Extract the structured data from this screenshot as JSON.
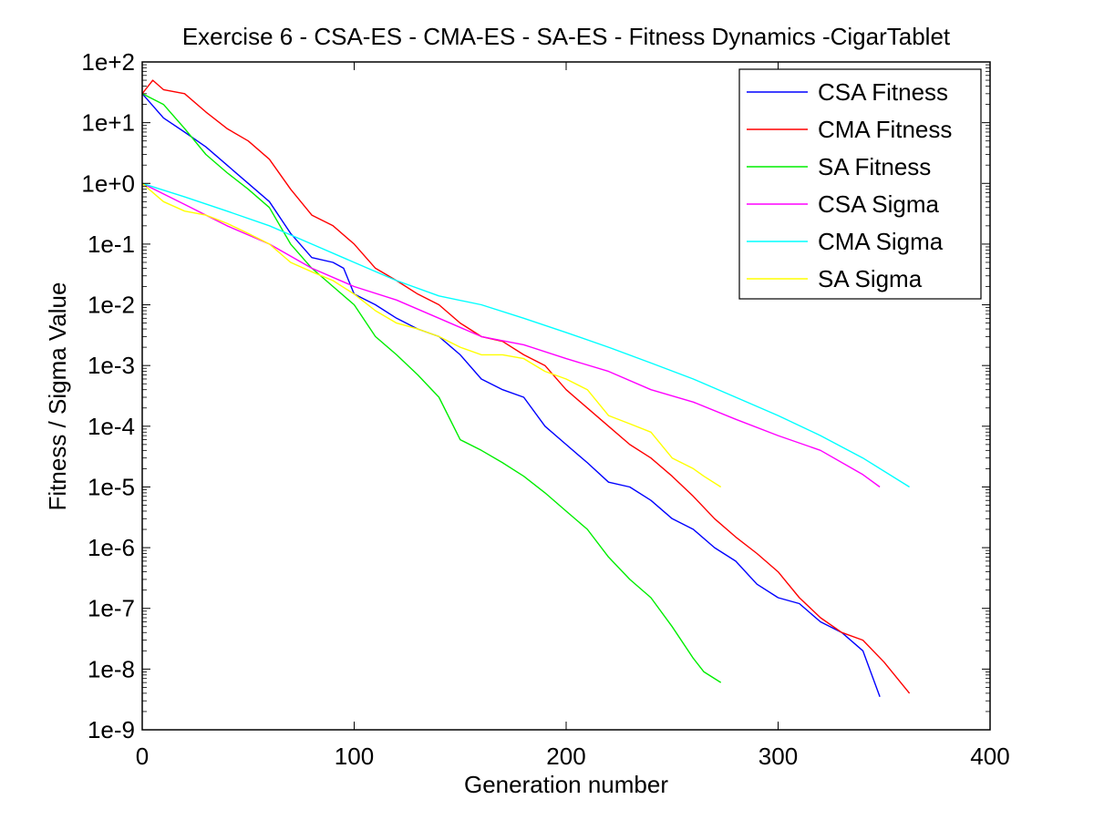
{
  "chart_data": {
    "type": "line",
    "title": "Exercise 6 - CSA-ES - CMA-ES - SA-ES - Fitness Dynamics -CigarTablet",
    "xlabel": "Generation number",
    "ylabel": "Fitness / Sigma Value",
    "xlim": [
      0,
      400
    ],
    "ylim": [
      1e-09,
      100
    ],
    "yscale": "log",
    "x_ticks": [
      0,
      100,
      200,
      300,
      400
    ],
    "x_tick_labels": [
      "0",
      "100",
      "200",
      "300",
      "400"
    ],
    "y_ticks": [
      1e-09,
      1e-08,
      1e-07,
      1e-06,
      1e-05,
      0.0001,
      0.001,
      0.01,
      0.1,
      1,
      10,
      100
    ],
    "y_tick_labels": [
      "1e-9",
      "1e-8",
      "1e-7",
      "1e-6",
      "1e-5",
      "1e-4",
      "1e-3",
      "1e-2",
      "1e-1",
      "1e+0",
      "1e+1",
      "1e+2"
    ],
    "grid": false,
    "legend_position": "top-right",
    "series": [
      {
        "name": "CSA Fitness",
        "color": "#0000ff",
        "x": [
          0,
          10,
          20,
          30,
          40,
          50,
          60,
          70,
          80,
          90,
          95,
          100,
          110,
          120,
          130,
          140,
          150,
          160,
          170,
          180,
          190,
          200,
          210,
          220,
          230,
          240,
          250,
          260,
          270,
          280,
          290,
          300,
          310,
          320,
          330,
          340,
          348
        ],
        "y": [
          30,
          12,
          7,
          4,
          2,
          1,
          0.5,
          0.15,
          0.06,
          0.05,
          0.04,
          0.015,
          0.01,
          0.006,
          0.004,
          0.003,
          0.0015,
          0.0006,
          0.0004,
          0.0003,
          0.0001,
          5e-05,
          2.5e-05,
          1.2e-05,
          1e-05,
          6e-06,
          3e-06,
          2e-06,
          1e-06,
          6e-07,
          2.5e-07,
          1.5e-07,
          1.2e-07,
          6e-08,
          4e-08,
          2e-08,
          3.5e-09
        ]
      },
      {
        "name": "CMA Fitness",
        "color": "#ff0000",
        "x": [
          0,
          5,
          10,
          20,
          30,
          40,
          50,
          60,
          70,
          80,
          90,
          100,
          110,
          120,
          130,
          140,
          150,
          160,
          170,
          180,
          190,
          200,
          210,
          220,
          230,
          240,
          250,
          260,
          270,
          280,
          290,
          300,
          310,
          320,
          330,
          340,
          350,
          362
        ],
        "y": [
          30,
          50,
          35,
          30,
          15,
          8,
          5,
          2.5,
          0.8,
          0.3,
          0.2,
          0.1,
          0.04,
          0.025,
          0.015,
          0.01,
          0.005,
          0.003,
          0.0025,
          0.0015,
          0.001,
          0.0004,
          0.0002,
          0.0001,
          5e-05,
          3e-05,
          1.5e-05,
          7e-06,
          3e-06,
          1.5e-06,
          8e-07,
          4e-07,
          1.5e-07,
          7e-08,
          4e-08,
          3e-08,
          1.3e-08,
          4e-09
        ]
      },
      {
        "name": "SA Fitness",
        "color": "#00ee00",
        "x": [
          0,
          10,
          20,
          30,
          40,
          50,
          60,
          70,
          80,
          90,
          100,
          110,
          120,
          130,
          140,
          150,
          160,
          170,
          180,
          190,
          200,
          210,
          220,
          230,
          240,
          250,
          260,
          265,
          273
        ],
        "y": [
          30,
          20,
          8,
          3,
          1.5,
          0.8,
          0.4,
          0.1,
          0.04,
          0.02,
          0.01,
          0.003,
          0.0015,
          0.0007,
          0.0003,
          6e-05,
          4e-05,
          2.5e-05,
          1.5e-05,
          8e-06,
          4e-06,
          2e-06,
          7e-07,
          3e-07,
          1.5e-07,
          5e-08,
          1.5e-08,
          9e-09,
          6e-09
        ]
      },
      {
        "name": "CSA Sigma",
        "color": "#ff00ff",
        "x": [
          0,
          20,
          40,
          60,
          80,
          100,
          120,
          140,
          160,
          180,
          200,
          220,
          240,
          260,
          280,
          300,
          320,
          340,
          348
        ],
        "y": [
          1,
          0.45,
          0.2,
          0.1,
          0.04,
          0.02,
          0.012,
          0.006,
          0.003,
          0.0022,
          0.0013,
          0.0008,
          0.0004,
          0.00025,
          0.00013,
          7e-05,
          4e-05,
          1.6e-05,
          1e-05
        ]
      },
      {
        "name": "CMA Sigma",
        "color": "#00ffff",
        "x": [
          0,
          20,
          40,
          60,
          80,
          100,
          120,
          140,
          160,
          180,
          200,
          220,
          240,
          260,
          280,
          300,
          320,
          340,
          362
        ],
        "y": [
          1,
          0.6,
          0.35,
          0.2,
          0.1,
          0.05,
          0.025,
          0.014,
          0.01,
          0.006,
          0.0035,
          0.002,
          0.0011,
          0.0006,
          0.0003,
          0.00015,
          7e-05,
          3e-05,
          1e-05
        ]
      },
      {
        "name": "SA Sigma",
        "color": "#ffff00",
        "x": [
          0,
          10,
          20,
          30,
          40,
          50,
          60,
          70,
          80,
          90,
          100,
          110,
          120,
          130,
          140,
          150,
          160,
          170,
          180,
          190,
          200,
          210,
          220,
          230,
          240,
          250,
          260,
          265,
          273
        ],
        "y": [
          1,
          0.5,
          0.35,
          0.3,
          0.22,
          0.15,
          0.1,
          0.05,
          0.035,
          0.025,
          0.015,
          0.008,
          0.005,
          0.004,
          0.003,
          0.002,
          0.0015,
          0.0015,
          0.0013,
          0.0008,
          0.0006,
          0.0004,
          0.00015,
          0.00011,
          8e-05,
          3e-05,
          2e-05,
          1.5e-05,
          1e-05
        ]
      }
    ]
  }
}
